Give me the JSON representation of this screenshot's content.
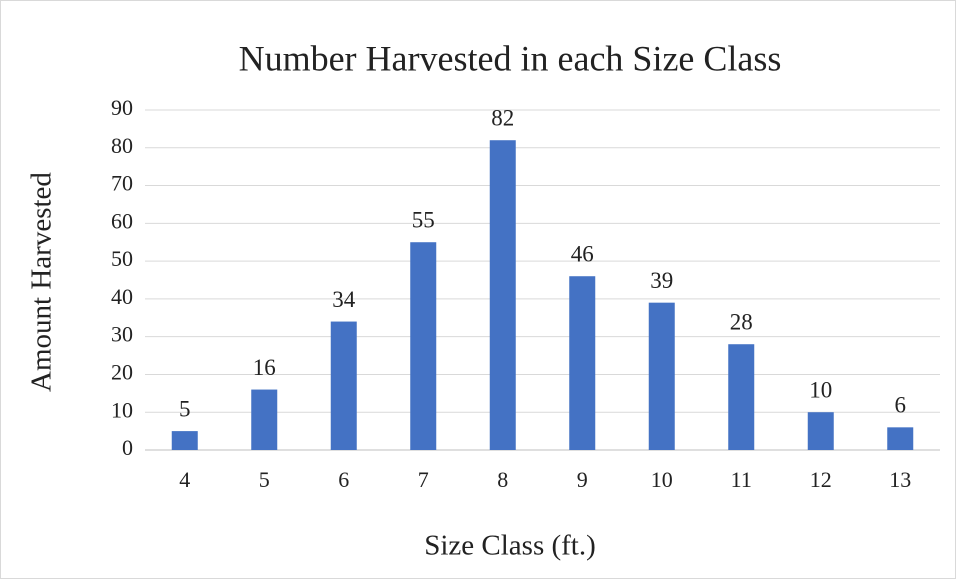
{
  "chart_data": {
    "type": "bar",
    "title": "Number Harvested in each Size Class",
    "x_label": "Size Class (ft.)",
    "y_label": "Amount Harvested",
    "categories": [
      "4",
      "5",
      "6",
      "7",
      "8",
      "9",
      "10",
      "11",
      "12",
      "13"
    ],
    "values": [
      5,
      16,
      34,
      55,
      82,
      46,
      39,
      28,
      10,
      6
    ],
    "color": "#4472c4",
    "ylim": [
      0,
      90
    ],
    "yticks": [
      0,
      10,
      20,
      30,
      40,
      50,
      60,
      70,
      80,
      90
    ],
    "grid": true
  }
}
